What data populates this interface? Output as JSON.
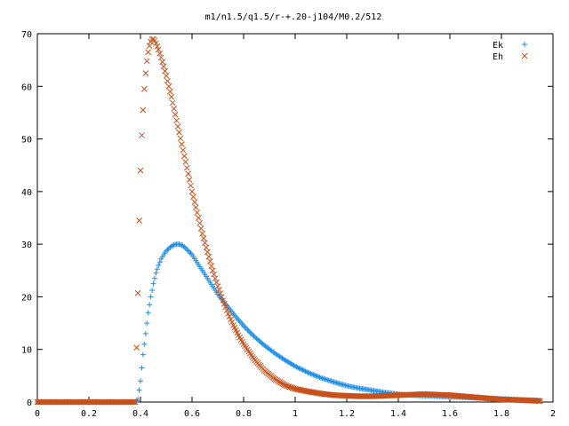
{
  "chart_data": {
    "type": "scatter",
    "title": "m1/n1.5/q1.5/r-+.20-j104/M0.2/512",
    "xlabel": "",
    "ylabel": "",
    "xlim": [
      0,
      2
    ],
    "ylim": [
      0,
      70
    ],
    "x_ticks": [
      "0",
      "0.2",
      "0.4",
      "0.6",
      "0.8",
      "1",
      "1.2",
      "1.4",
      "1.6",
      "1.8",
      "2"
    ],
    "y_ticks": [
      "0",
      "10",
      "20",
      "30",
      "40",
      "50",
      "60",
      "70"
    ],
    "grid": false,
    "legend_position": "top-right",
    "series": [
      {
        "name": "Ek",
        "marker": "plus",
        "color": "#1f8fe6",
        "points": [
          [
            0.0,
            0
          ],
          [
            0.1,
            0
          ],
          [
            0.2,
            0
          ],
          [
            0.3,
            0
          ],
          [
            0.38,
            0
          ],
          [
            0.39,
            0.5
          ],
          [
            0.4,
            4
          ],
          [
            0.41,
            9
          ],
          [
            0.42,
            13
          ],
          [
            0.43,
            17
          ],
          [
            0.44,
            20
          ],
          [
            0.45,
            22.5
          ],
          [
            0.46,
            24.5
          ],
          [
            0.47,
            26
          ],
          [
            0.48,
            27.2
          ],
          [
            0.49,
            28
          ],
          [
            0.5,
            28.7
          ],
          [
            0.51,
            29.2
          ],
          [
            0.52,
            29.6
          ],
          [
            0.53,
            29.9
          ],
          [
            0.54,
            30
          ],
          [
            0.55,
            30
          ],
          [
            0.56,
            29.8
          ],
          [
            0.57,
            29.5
          ],
          [
            0.58,
            29
          ],
          [
            0.6,
            28
          ],
          [
            0.62,
            26.5
          ],
          [
            0.64,
            25
          ],
          [
            0.66,
            23.5
          ],
          [
            0.68,
            22
          ],
          [
            0.7,
            20.5
          ],
          [
            0.72,
            19.2
          ],
          [
            0.74,
            18
          ],
          [
            0.76,
            16.8
          ],
          [
            0.78,
            15.6
          ],
          [
            0.8,
            14.5
          ],
          [
            0.84,
            12.5
          ],
          [
            0.88,
            10.8
          ],
          [
            0.92,
            9.3
          ],
          [
            0.96,
            8
          ],
          [
            1.0,
            6.8
          ],
          [
            1.05,
            5.6
          ],
          [
            1.1,
            4.6
          ],
          [
            1.15,
            3.8
          ],
          [
            1.2,
            3.1
          ],
          [
            1.25,
            2.6
          ],
          [
            1.3,
            2.2
          ],
          [
            1.35,
            1.8
          ],
          [
            1.4,
            1.5
          ],
          [
            1.45,
            1.3
          ],
          [
            1.5,
            1.2
          ],
          [
            1.55,
            1.1
          ],
          [
            1.6,
            1.0
          ],
          [
            1.65,
            0.9
          ],
          [
            1.7,
            0.8
          ],
          [
            1.75,
            0.7
          ],
          [
            1.8,
            0.6
          ],
          [
            1.85,
            0.5
          ],
          [
            1.9,
            0.4
          ],
          [
            1.95,
            0.3
          ]
        ]
      },
      {
        "name": "Eh",
        "marker": "cross",
        "color": "#c8501a",
        "points": [
          [
            0.0,
            0
          ],
          [
            0.1,
            0
          ],
          [
            0.2,
            0
          ],
          [
            0.3,
            0
          ],
          [
            0.38,
            0
          ],
          [
            0.39,
            20.7
          ],
          [
            0.395,
            34.5
          ],
          [
            0.4,
            44
          ],
          [
            0.405,
            50.7
          ],
          [
            0.41,
            55.5
          ],
          [
            0.415,
            59.5
          ],
          [
            0.42,
            62.5
          ],
          [
            0.425,
            64.8
          ],
          [
            0.43,
            66.5
          ],
          [
            0.435,
            67.7
          ],
          [
            0.44,
            68.5
          ],
          [
            0.445,
            68.9
          ],
          [
            0.45,
            69
          ],
          [
            0.455,
            68.7
          ],
          [
            0.46,
            68.2
          ],
          [
            0.47,
            67
          ],
          [
            0.48,
            65.5
          ],
          [
            0.49,
            63.8
          ],
          [
            0.5,
            62
          ],
          [
            0.52,
            58
          ],
          [
            0.54,
            53.5
          ],
          [
            0.56,
            49
          ],
          [
            0.58,
            44.5
          ],
          [
            0.6,
            40
          ],
          [
            0.62,
            36
          ],
          [
            0.64,
            32
          ],
          [
            0.66,
            28.5
          ],
          [
            0.68,
            25
          ],
          [
            0.7,
            22
          ],
          [
            0.72,
            19.3
          ],
          [
            0.74,
            16.8
          ],
          [
            0.76,
            14.6
          ],
          [
            0.78,
            12.7
          ],
          [
            0.8,
            11
          ],
          [
            0.84,
            8.2
          ],
          [
            0.88,
            6
          ],
          [
            0.92,
            4.4
          ],
          [
            0.96,
            3.2
          ],
          [
            1.0,
            2.5
          ],
          [
            1.05,
            2
          ],
          [
            1.1,
            1.6
          ],
          [
            1.15,
            1.3
          ],
          [
            1.2,
            1.2
          ],
          [
            1.25,
            1.1
          ],
          [
            1.3,
            1.1
          ],
          [
            1.35,
            1.2
          ],
          [
            1.4,
            1.3
          ],
          [
            1.45,
            1.4
          ],
          [
            1.5,
            1.5
          ],
          [
            1.55,
            1.4
          ],
          [
            1.6,
            1.3
          ],
          [
            1.65,
            1.1
          ],
          [
            1.7,
            0.9
          ],
          [
            1.75,
            0.7
          ],
          [
            1.8,
            0.5
          ],
          [
            1.85,
            0.4
          ],
          [
            1.9,
            0.3
          ],
          [
            1.95,
            0.2
          ]
        ]
      }
    ]
  }
}
